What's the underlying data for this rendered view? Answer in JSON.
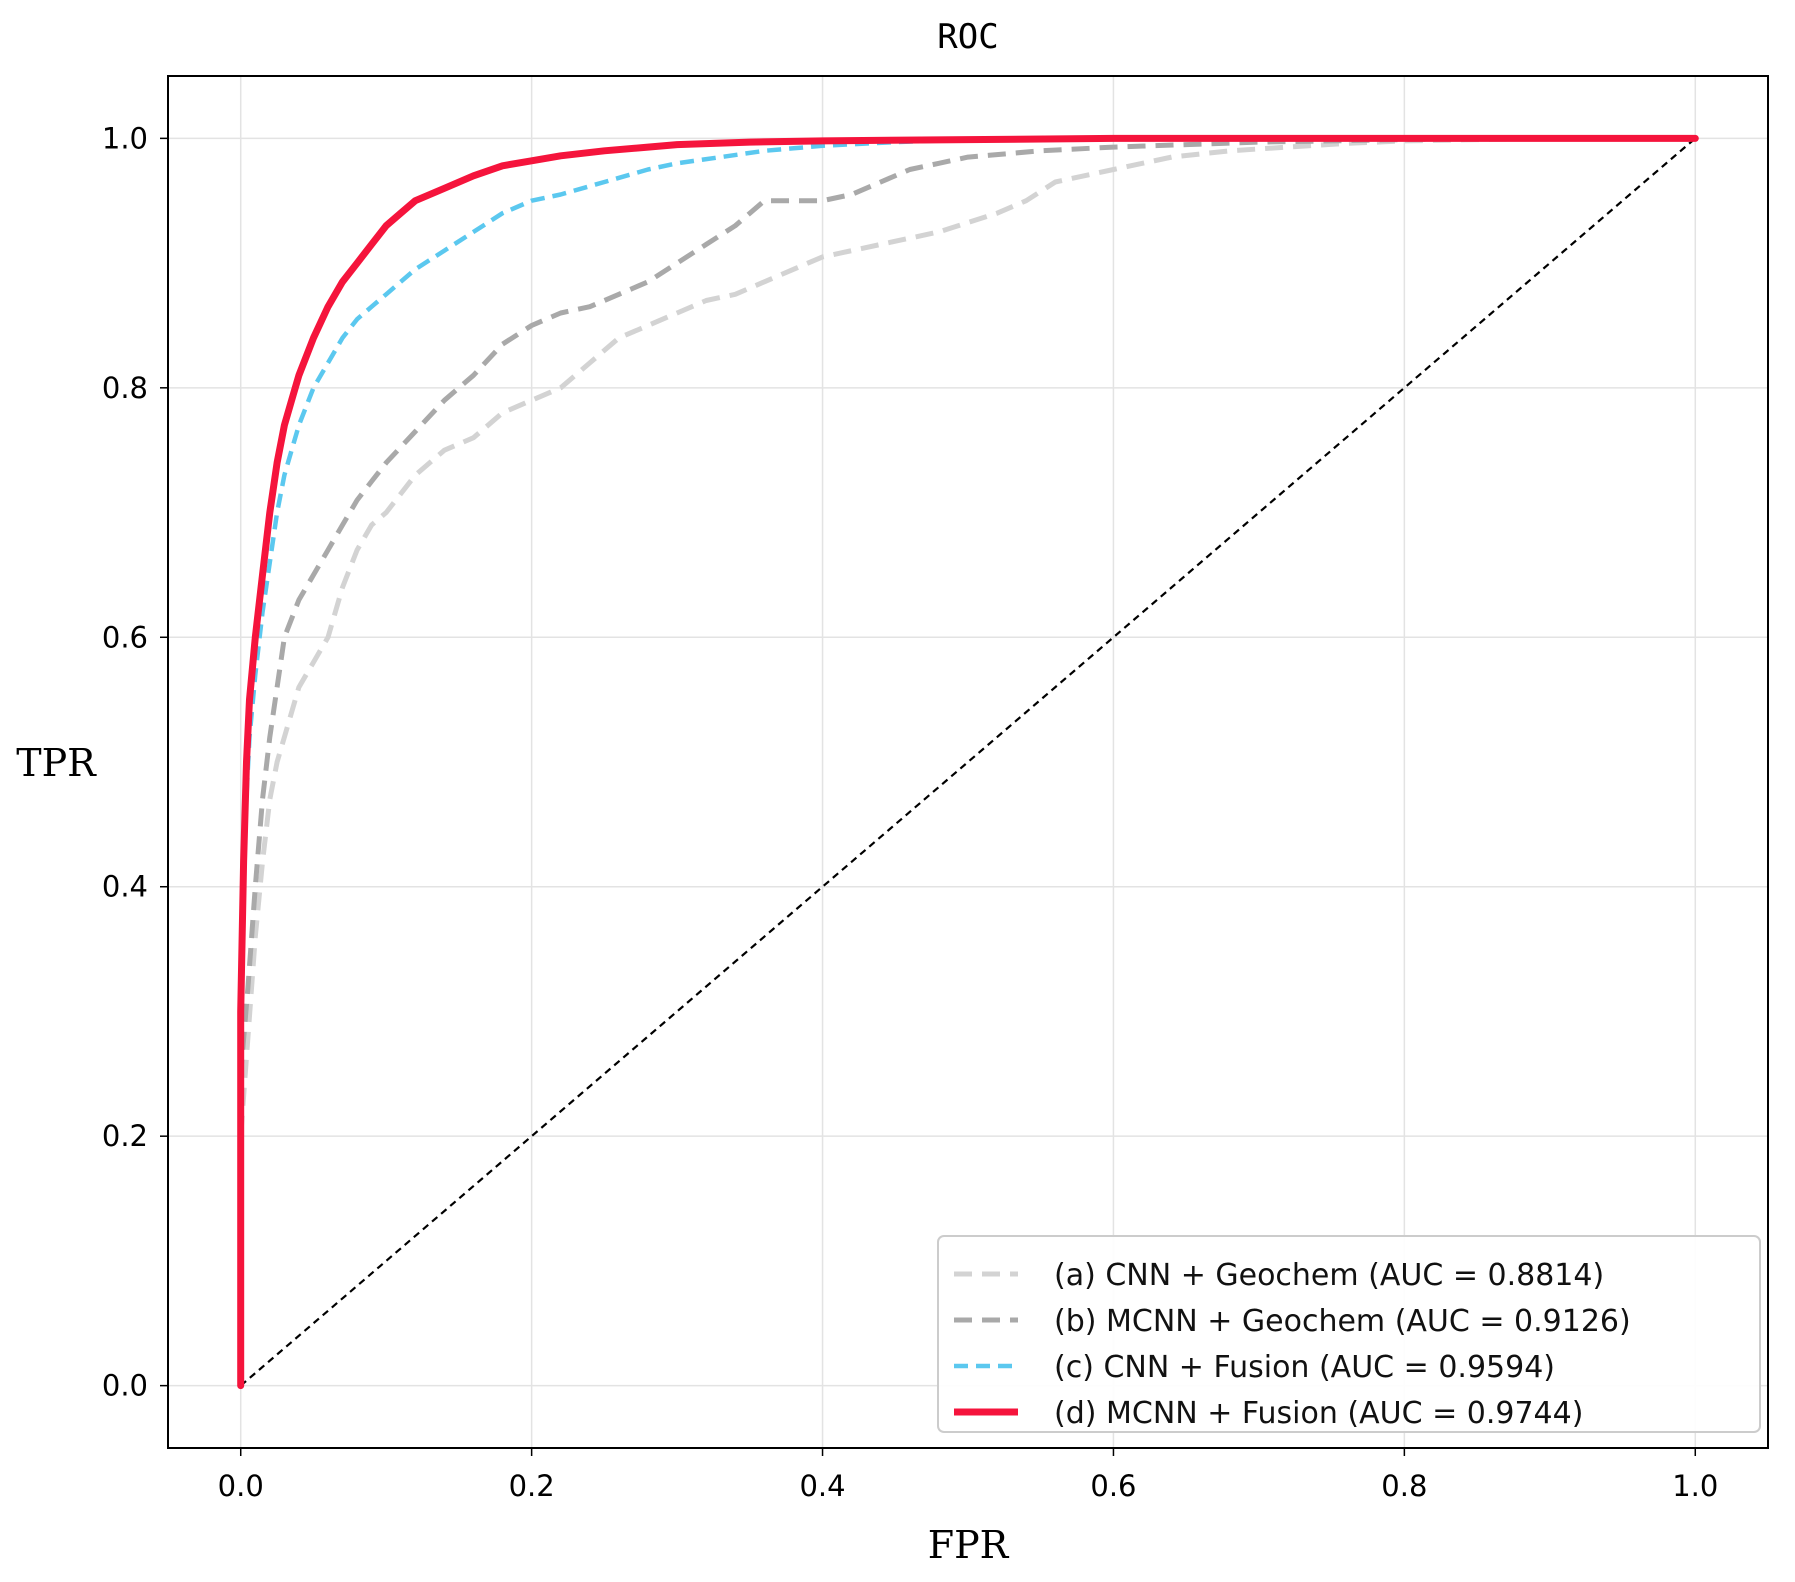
{
  "chart_data": {
    "type": "line",
    "title": "ROC",
    "xlabel": "FPR",
    "ylabel": "TPR",
    "xlim": [
      -0.05,
      1.05
    ],
    "ylim": [
      -0.05,
      1.05
    ],
    "xticks": [
      0.0,
      0.2,
      0.4,
      0.6,
      0.8,
      1.0
    ],
    "xtick_labels": [
      "0.0",
      "0.2",
      "0.4",
      "0.6",
      "0.8",
      "1.0"
    ],
    "yticks": [
      0.0,
      0.2,
      0.4,
      0.6,
      0.8,
      1.0
    ],
    "ytick_labels": [
      "0.0",
      "0.2",
      "0.4",
      "0.6",
      "0.8",
      "1.0"
    ],
    "grid": true,
    "legend_position": "bottom-right",
    "reference_line": {
      "x": [
        0,
        1
      ],
      "y": [
        0,
        1
      ],
      "color": "#000000",
      "style": "dashed"
    },
    "series": [
      {
        "name": "(a) CNN + Geochem (AUC = 0.8814)",
        "color": "#d3d3d3",
        "style": "dashed",
        "x": [
          0.0,
          0.0,
          0.005,
          0.01,
          0.015,
          0.02,
          0.025,
          0.03,
          0.04,
          0.05,
          0.06,
          0.07,
          0.08,
          0.09,
          0.1,
          0.12,
          0.14,
          0.16,
          0.18,
          0.2,
          0.22,
          0.24,
          0.26,
          0.28,
          0.3,
          0.32,
          0.34,
          0.36,
          0.38,
          0.4,
          0.44,
          0.48,
          0.52,
          0.54,
          0.56,
          0.6,
          0.64,
          0.68,
          0.72,
          0.76,
          0.8,
          0.85,
          0.9,
          1.0
        ],
        "y": [
          0.0,
          0.2,
          0.28,
          0.36,
          0.42,
          0.47,
          0.5,
          0.52,
          0.56,
          0.58,
          0.6,
          0.64,
          0.67,
          0.69,
          0.7,
          0.73,
          0.75,
          0.76,
          0.78,
          0.79,
          0.8,
          0.82,
          0.84,
          0.85,
          0.86,
          0.87,
          0.875,
          0.885,
          0.895,
          0.905,
          0.915,
          0.925,
          0.94,
          0.95,
          0.965,
          0.975,
          0.985,
          0.99,
          0.993,
          0.996,
          0.998,
          0.999,
          1.0,
          1.0
        ]
      },
      {
        "name": "(b) MCNN + Geochem (AUC = 0.9126)",
        "color": "#a9a9a9",
        "style": "dashed",
        "x": [
          0.0,
          0.0,
          0.005,
          0.01,
          0.015,
          0.02,
          0.025,
          0.03,
          0.04,
          0.05,
          0.06,
          0.07,
          0.08,
          0.09,
          0.1,
          0.12,
          0.14,
          0.16,
          0.18,
          0.2,
          0.22,
          0.24,
          0.26,
          0.28,
          0.3,
          0.32,
          0.34,
          0.36,
          0.38,
          0.4,
          0.42,
          0.44,
          0.46,
          0.48,
          0.5,
          0.55,
          0.6,
          0.65,
          0.7,
          0.75,
          0.8,
          0.85,
          1.0
        ],
        "y": [
          0.0,
          0.25,
          0.32,
          0.4,
          0.47,
          0.52,
          0.56,
          0.6,
          0.63,
          0.65,
          0.67,
          0.69,
          0.71,
          0.725,
          0.74,
          0.765,
          0.79,
          0.81,
          0.835,
          0.85,
          0.86,
          0.865,
          0.875,
          0.885,
          0.9,
          0.915,
          0.93,
          0.95,
          0.95,
          0.95,
          0.955,
          0.965,
          0.975,
          0.98,
          0.985,
          0.99,
          0.993,
          0.995,
          0.997,
          0.998,
          0.999,
          1.0,
          1.0
        ]
      },
      {
        "name": "(c) CNN + Fusion (AUC = 0.9594)",
        "color": "#5bc8ef",
        "style": "dashed",
        "x": [
          0.0,
          0.0,
          0.003,
          0.006,
          0.01,
          0.015,
          0.02,
          0.025,
          0.03,
          0.035,
          0.04,
          0.05,
          0.06,
          0.07,
          0.08,
          0.09,
          0.1,
          0.11,
          0.12,
          0.14,
          0.16,
          0.18,
          0.2,
          0.22,
          0.25,
          0.28,
          0.3,
          0.33,
          0.36,
          0.4,
          0.45,
          0.5,
          0.6,
          0.7,
          0.8,
          1.0
        ],
        "y": [
          0.0,
          0.3,
          0.45,
          0.52,
          0.57,
          0.62,
          0.66,
          0.7,
          0.73,
          0.75,
          0.77,
          0.8,
          0.82,
          0.84,
          0.855,
          0.865,
          0.875,
          0.885,
          0.895,
          0.91,
          0.925,
          0.94,
          0.95,
          0.955,
          0.965,
          0.975,
          0.98,
          0.985,
          0.99,
          0.994,
          0.997,
          0.999,
          1.0,
          1.0,
          1.0,
          1.0
        ]
      },
      {
        "name": "(d) MCNN + Fusion (AUC = 0.9744)",
        "color": "#f5143c",
        "style": "solid",
        "x": [
          0.0,
          0.0,
          0.002,
          0.004,
          0.006,
          0.01,
          0.015,
          0.02,
          0.025,
          0.03,
          0.035,
          0.04,
          0.05,
          0.06,
          0.07,
          0.08,
          0.09,
          0.1,
          0.11,
          0.12,
          0.14,
          0.16,
          0.18,
          0.2,
          0.22,
          0.25,
          0.28,
          0.3,
          0.35,
          0.4,
          0.5,
          0.6,
          0.8,
          1.0
        ],
        "y": [
          0.0,
          0.3,
          0.42,
          0.5,
          0.55,
          0.6,
          0.65,
          0.7,
          0.74,
          0.77,
          0.79,
          0.81,
          0.84,
          0.865,
          0.885,
          0.9,
          0.915,
          0.93,
          0.94,
          0.95,
          0.96,
          0.97,
          0.978,
          0.982,
          0.986,
          0.99,
          0.993,
          0.995,
          0.997,
          0.998,
          0.999,
          1.0,
          1.0,
          1.0
        ]
      }
    ]
  }
}
